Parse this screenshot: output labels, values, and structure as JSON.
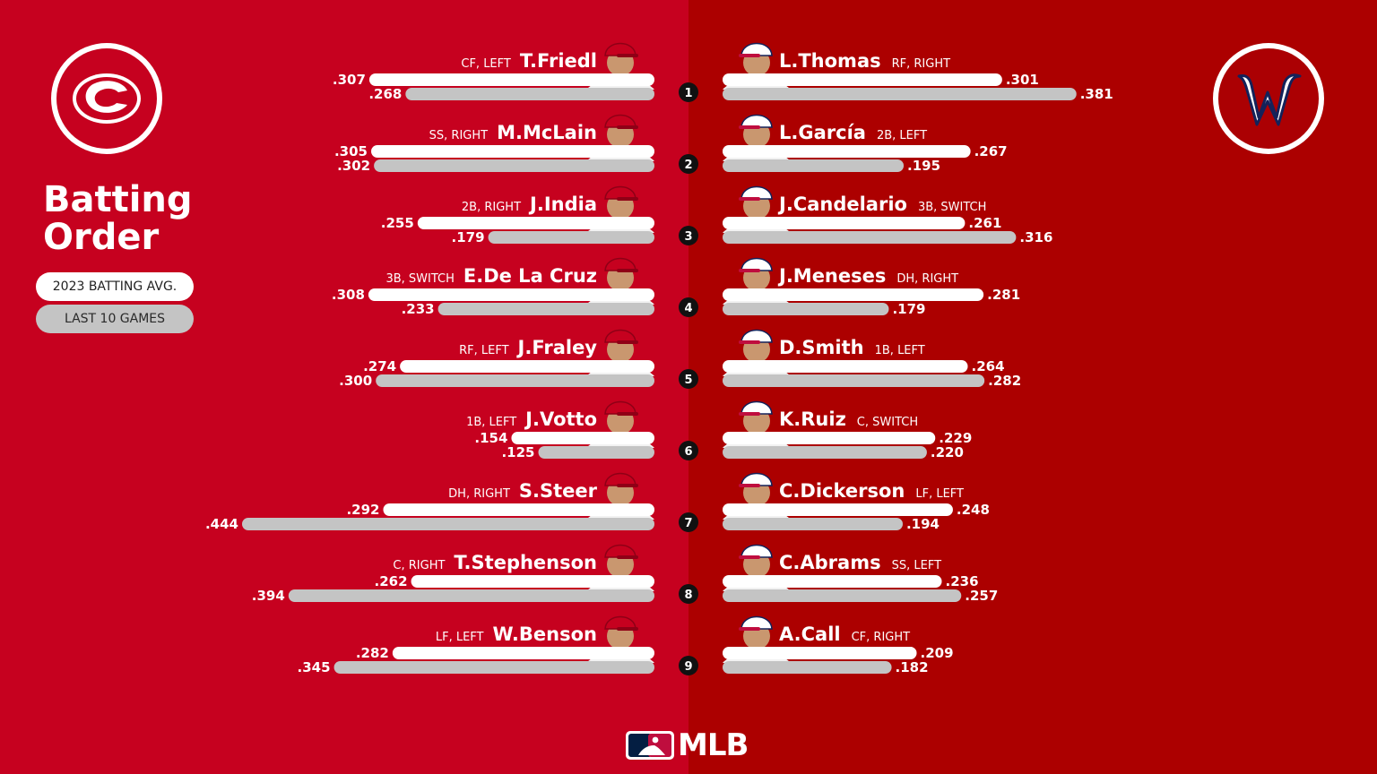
{
  "title_line1": "Batting",
  "title_line2": "Order",
  "legend": {
    "season_label": "2023 BATTING AVG.",
    "recent_label": "LAST 10 GAMES"
  },
  "branding": {
    "league_text": "MLB"
  },
  "teams": {
    "home": {
      "logo_letter": "C",
      "primary_color": "#c6011f"
    },
    "away": {
      "logo_letter": "W",
      "primary_color": "#ab0003"
    }
  },
  "colors": {
    "season_bar": "#ffffff",
    "recent_bar": "#c4c4c4",
    "order_circle": "#111111"
  },
  "chart_data": {
    "type": "bar",
    "scale_max": 0.444,
    "series": [
      {
        "name": "2023 BATTING AVG.",
        "color": "#ffffff"
      },
      {
        "name": "LAST 10 GAMES",
        "color": "#c4c4c4"
      }
    ],
    "order": [
      "1",
      "2",
      "3",
      "4",
      "5",
      "6",
      "7",
      "8",
      "9"
    ],
    "home": [
      {
        "name": "T.Friedl",
        "pos": "CF, LEFT",
        "season": 0.307,
        "recent": 0.268,
        "season_label": ".307",
        "recent_label": ".268"
      },
      {
        "name": "M.McLain",
        "pos": "SS, RIGHT",
        "season": 0.305,
        "recent": 0.302,
        "season_label": ".305",
        "recent_label": ".302"
      },
      {
        "name": "J.India",
        "pos": "2B, RIGHT",
        "season": 0.255,
        "recent": 0.179,
        "season_label": ".255",
        "recent_label": ".179"
      },
      {
        "name": "E.De La Cruz",
        "pos": "3B, SWITCH",
        "season": 0.308,
        "recent": 0.233,
        "season_label": ".308",
        "recent_label": ".233"
      },
      {
        "name": "J.Fraley",
        "pos": "RF, LEFT",
        "season": 0.274,
        "recent": 0.3,
        "season_label": ".274",
        "recent_label": ".300"
      },
      {
        "name": "J.Votto",
        "pos": "1B, LEFT",
        "season": 0.154,
        "recent": 0.125,
        "season_label": ".154",
        "recent_label": ".125"
      },
      {
        "name": "S.Steer",
        "pos": "DH, RIGHT",
        "season": 0.292,
        "recent": 0.444,
        "season_label": ".292",
        "recent_label": ".444"
      },
      {
        "name": "T.Stephenson",
        "pos": "C, RIGHT",
        "season": 0.262,
        "recent": 0.394,
        "season_label": ".262",
        "recent_label": ".394"
      },
      {
        "name": "W.Benson",
        "pos": "LF, LEFT",
        "season": 0.282,
        "recent": 0.345,
        "season_label": ".282",
        "recent_label": ".345"
      }
    ],
    "away": [
      {
        "name": "L.Thomas",
        "pos": "RF, RIGHT",
        "season": 0.301,
        "recent": 0.381,
        "season_label": ".301",
        "recent_label": ".381"
      },
      {
        "name": "L.García",
        "pos": "2B, LEFT",
        "season": 0.267,
        "recent": 0.195,
        "season_label": ".267",
        "recent_label": ".195"
      },
      {
        "name": "J.Candelario",
        "pos": "3B, SWITCH",
        "season": 0.261,
        "recent": 0.316,
        "season_label": ".261",
        "recent_label": ".316"
      },
      {
        "name": "J.Meneses",
        "pos": "DH, RIGHT",
        "season": 0.281,
        "recent": 0.179,
        "season_label": ".281",
        "recent_label": ".179"
      },
      {
        "name": "D.Smith",
        "pos": "1B, LEFT",
        "season": 0.264,
        "recent": 0.282,
        "season_label": ".264",
        "recent_label": ".282"
      },
      {
        "name": "K.Ruiz",
        "pos": "C, SWITCH",
        "season": 0.229,
        "recent": 0.22,
        "season_label": ".229",
        "recent_label": ".220"
      },
      {
        "name": "C.Dickerson",
        "pos": "LF, LEFT",
        "season": 0.248,
        "recent": 0.194,
        "season_label": ".248",
        "recent_label": ".194"
      },
      {
        "name": "C.Abrams",
        "pos": "SS, LEFT",
        "season": 0.236,
        "recent": 0.257,
        "season_label": ".236",
        "recent_label": ".257"
      },
      {
        "name": "A.Call",
        "pos": "CF, RIGHT",
        "season": 0.209,
        "recent": 0.182,
        "season_label": ".209",
        "recent_label": ".182"
      }
    ]
  }
}
